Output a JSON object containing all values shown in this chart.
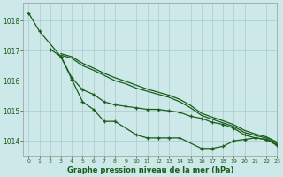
{
  "title": "Graphe pression niveau de la mer (hPa)",
  "background_color": "#cce8e8",
  "grid_color": "#aacccc",
  "line_color": "#1a5c1a",
  "xlim": [
    -0.5,
    23
  ],
  "ylim": [
    1013.5,
    1018.6
  ],
  "yticks": [
    1014,
    1015,
    1016,
    1017,
    1018
  ],
  "xticks": [
    0,
    1,
    2,
    3,
    4,
    5,
    6,
    7,
    8,
    9,
    10,
    11,
    12,
    13,
    14,
    15,
    16,
    17,
    18,
    19,
    20,
    21,
    22,
    23
  ],
  "line1_x": [
    0,
    1,
    2,
    3,
    4,
    5,
    6,
    7,
    8,
    9,
    10,
    11,
    12,
    13,
    14,
    15,
    16,
    17,
    18,
    19,
    20,
    21,
    22,
    23
  ],
  "line1_y": [
    1018.25,
    1017.65,
    null,
    null,
    null,
    null,
    null,
    null,
    null,
    null,
    null,
    null,
    null,
    null,
    null,
    null,
    null,
    null,
    null,
    null,
    null,
    null,
    null,
    null
  ],
  "line2_x": [
    0,
    1,
    3,
    4,
    5,
    6,
    7,
    8,
    10,
    11,
    12,
    13,
    14,
    16,
    17,
    18,
    19,
    20,
    21,
    22,
    23
  ],
  "line2_y": [
    1018.25,
    1017.65,
    1016.8,
    1016.05,
    1015.3,
    1015.05,
    1014.65,
    1014.65,
    1014.2,
    1014.1,
    1014.1,
    1014.1,
    1014.1,
    1013.75,
    1013.75,
    1013.82,
    1014.0,
    1014.05,
    1014.1,
    1014.05,
    1013.85
  ],
  "line3_x": [
    2,
    3,
    4,
    5,
    6,
    7,
    8,
    9,
    10,
    11,
    12,
    13,
    14,
    15,
    16,
    17,
    18,
    19,
    20,
    21,
    22,
    23
  ],
  "line3_y": [
    1017.05,
    1016.8,
    1016.1,
    1015.7,
    1015.55,
    1015.3,
    1015.2,
    1015.15,
    1015.1,
    1015.05,
    1015.05,
    1015.0,
    1014.95,
    1014.82,
    1014.75,
    1014.62,
    1014.55,
    1014.42,
    1014.2,
    1014.1,
    1014.05,
    1013.88
  ],
  "line4_x": [
    3,
    4,
    5,
    6,
    7,
    8,
    9,
    10,
    11,
    12,
    13,
    14,
    15,
    16,
    17,
    18,
    19,
    20,
    21,
    22,
    23
  ],
  "line4_y": [
    1016.85,
    1016.75,
    1016.5,
    1016.35,
    1016.18,
    1016.0,
    1015.9,
    1015.75,
    1015.65,
    1015.55,
    1015.45,
    1015.3,
    1015.1,
    1014.85,
    1014.72,
    1014.6,
    1014.48,
    1014.28,
    1014.18,
    1014.1,
    1013.92
  ],
  "line5_x": [
    3,
    4,
    5,
    6,
    7,
    8,
    9,
    10,
    11,
    12,
    13,
    14,
    15,
    16,
    17,
    18,
    19,
    20,
    21,
    22,
    23
  ],
  "line5_y": [
    1016.9,
    1016.8,
    1016.58,
    1016.42,
    1016.25,
    1016.1,
    1015.98,
    1015.85,
    1015.72,
    1015.62,
    1015.52,
    1015.38,
    1015.18,
    1014.92,
    1014.79,
    1014.67,
    1014.54,
    1014.35,
    1014.23,
    1014.14,
    1013.96
  ]
}
